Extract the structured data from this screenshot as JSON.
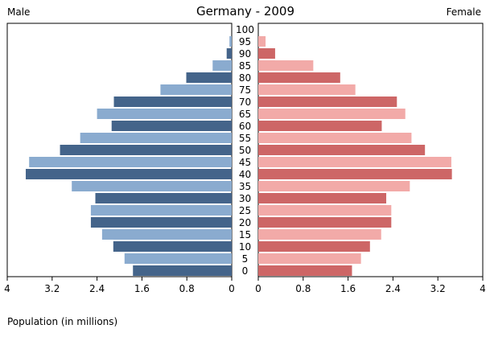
{
  "chart_data": {
    "type": "bar",
    "title": "Germany - 2009",
    "left_label": "Male",
    "right_label": "Female",
    "xlabel": "Population (in millions)",
    "age_groups": [
      "0",
      "5",
      "10",
      "15",
      "20",
      "25",
      "30",
      "35",
      "40",
      "45",
      "50",
      "55",
      "60",
      "65",
      "70",
      "75",
      "80",
      "85",
      "90",
      "95",
      "100"
    ],
    "series": [
      {
        "name": "Male",
        "values": [
          1.76,
          1.91,
          2.11,
          2.31,
          2.51,
          2.51,
          2.43,
          2.85,
          3.67,
          3.61,
          3.06,
          2.7,
          2.14,
          2.4,
          2.1,
          1.27,
          0.81,
          0.34,
          0.09,
          0.04,
          0.0
        ]
      },
      {
        "name": "Female",
        "values": [
          1.67,
          1.83,
          1.99,
          2.19,
          2.37,
          2.37,
          2.28,
          2.7,
          3.45,
          3.44,
          2.97,
          2.73,
          2.2,
          2.62,
          2.47,
          1.73,
          1.46,
          0.98,
          0.3,
          0.13,
          0.0
        ]
      }
    ],
    "xlim": [
      0,
      4
    ],
    "male_ticks": [
      "4",
      "3.2",
      "2.4",
      "1.6",
      "0.8",
      "0"
    ],
    "female_ticks": [
      "0",
      "0.8",
      "1.6",
      "2.4",
      "3.2",
      "4"
    ],
    "colors": {
      "male_dark": "#44648a",
      "male_light": "#8aabcf",
      "female_dark": "#cd6666",
      "female_light": "#f2aaa8"
    },
    "grid": false,
    "legend": "none"
  }
}
